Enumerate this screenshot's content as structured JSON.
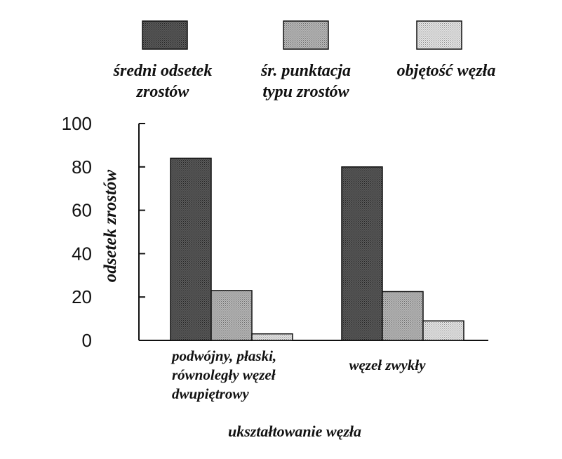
{
  "chart_data": {
    "type": "bar",
    "title": "",
    "xlabel": "ukształtowanie węzła",
    "ylabel": "odsetek zrostów",
    "ylim": [
      0,
      100
    ],
    "yticks": [
      "0",
      "20",
      "40",
      "60",
      "80",
      "100"
    ],
    "grid": false,
    "legend_position": "top",
    "categories": [
      [
        "podwójny, płaski,",
        "równoległy węzeł",
        "dwupiętrowy"
      ],
      [
        "węzeł zwykły"
      ]
    ],
    "series": [
      {
        "name": [
          "średni odsetek",
          "zrostów"
        ],
        "values": [
          84,
          80
        ],
        "color": "#4a4a4a"
      },
      {
        "name": [
          "śr. punktacja",
          "typu zrostów"
        ],
        "values": [
          23,
          22.5
        ],
        "color": "#a9a9a9"
      },
      {
        "name": [
          "objętość węzła"
        ],
        "values": [
          3,
          9
        ],
        "color": "#d9d9d9"
      }
    ]
  }
}
